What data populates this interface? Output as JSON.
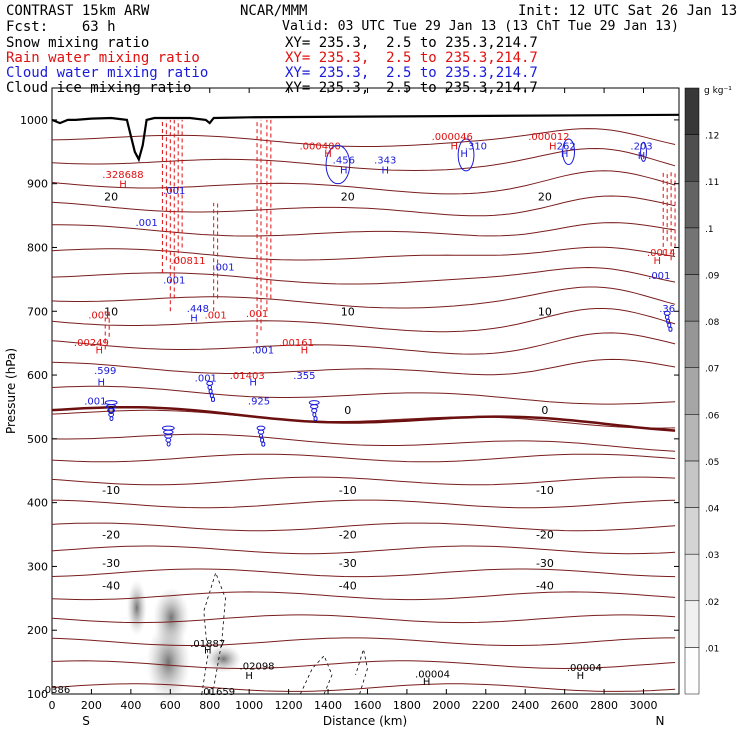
{
  "header": {
    "left_line1": "CONTRAST 15km ARW",
    "left_line2": "Fcst:    63 h",
    "center_line1": "NCAR/MMM",
    "init": "Init: 12 UTC Sat 26 Jan 13",
    "valid": "Valid: 03 UTC Tue 29 Jan 13 (13 ChT Tue 29 Jan 13)"
  },
  "fields": [
    {
      "name": "Snow mixing ratio",
      "xy": "XY= 235.3,  2.5 to 235.3,214.7",
      "color": "#000000"
    },
    {
      "name": "Rain water mixing ratio",
      "xy": "XY= 235.3,  2.5 to 235.3,214.7",
      "color": "#e01010"
    },
    {
      "name": "Cloud water mixing ratio",
      "xy": "XY= 235.3,  2.5 to 235.3,214.7",
      "color": "#1a1adc"
    },
    {
      "name": "Cloud ice mixing ratio",
      "xy": "XY= 235.3,  2.5 to 235.3,214.7",
      "color": "#000000"
    }
  ],
  "chart_data": {
    "type": "heatmap",
    "xlabel": "Distance (km)",
    "ylabel": "Pressure (hPa)",
    "xlim": [
      0,
      3180
    ],
    "ylim": [
      1050,
      100
    ],
    "x_ticks": [
      0,
      200,
      400,
      600,
      800,
      1000,
      1200,
      1400,
      1600,
      1800,
      2000,
      2200,
      2400,
      2600,
      2800,
      3000
    ],
    "y_ticks": [
      100,
      200,
      300,
      400,
      500,
      600,
      700,
      800,
      900,
      1000
    ],
    "x_end_labels": {
      "left": "S",
      "right": "N"
    },
    "colorbar": {
      "unit": "g kg⁻¹",
      "ticks": [
        ".01",
        ".02",
        ".03",
        ".04",
        ".05",
        ".06",
        ".07",
        ".08",
        ".09",
        ".1",
        ".11",
        ".12"
      ],
      "colors": [
        "#fdfdfd",
        "#f0f0f0",
        "#e2e2e2",
        "#d4d4d4",
        "#c6c6c6",
        "#b6b6b6",
        "#a6a6a6",
        "#969696",
        "#858585",
        "#747474",
        "#636363",
        "#4e4e4e",
        "#383838"
      ]
    },
    "temperature_contours": [
      {
        "label": "-40",
        "p": 270
      },
      {
        "label": "-30",
        "p": 305
      },
      {
        "label": "-20",
        "p": 350
      },
      {
        "label": "-10",
        "p": 420
      },
      {
        "label": "0",
        "p": 545
      },
      {
        "label": "10",
        "p": 700
      },
      {
        "label": "20",
        "p": 880
      }
    ],
    "annotations": [
      {
        "text": ".0386",
        "x": 20,
        "p": 108,
        "color": "#000000"
      },
      {
        "text": ".01659",
        "x": 840,
        "p": 105,
        "color": "#000000"
      },
      {
        "text": "H",
        "x": 790,
        "p": 170,
        "color": "#000000"
      },
      {
        "text": ".01887",
        "x": 790,
        "p": 180,
        "color": "#000000"
      },
      {
        "text": "H",
        "x": 1000,
        "p": 130,
        "color": "#000000"
      },
      {
        "text": ".02098",
        "x": 1040,
        "p": 145,
        "color": "#000000"
      },
      {
        "text": "H",
        "x": 1900,
        "p": 120,
        "color": "#000000"
      },
      {
        "text": ".00004",
        "x": 1930,
        "p": 132,
        "color": "#000000"
      },
      {
        "text": "H",
        "x": 2680,
        "p": 130,
        "color": "#000000"
      },
      {
        "text": ".00004",
        "x": 2700,
        "p": 142,
        "color": "#000000"
      },
      {
        "text": ".001",
        "x": 220,
        "p": 560,
        "color": "#1a1adc"
      },
      {
        "text": "H",
        "x": 250,
        "p": 590,
        "color": "#1a1adc"
      },
      {
        "text": ".599",
        "x": 270,
        "p": 608,
        "color": "#1a1adc"
      },
      {
        "text": "H",
        "x": 240,
        "p": 640,
        "color": "#e01010"
      },
      {
        "text": ".00249",
        "x": 200,
        "p": 652,
        "color": "#e01010"
      },
      {
        "text": ".001",
        "x": 240,
        "p": 695,
        "color": "#e01010"
      },
      {
        "text": ".001",
        "x": 780,
        "p": 596,
        "color": "#1a1adc"
      },
      {
        "text": "H",
        "x": 720,
        "p": 690,
        "color": "#1a1adc"
      },
      {
        "text": ".448",
        "x": 740,
        "p": 705,
        "color": "#1a1adc"
      },
      {
        "text": ".001",
        "x": 830,
        "p": 695,
        "color": "#e01010"
      },
      {
        "text": ".001",
        "x": 620,
        "p": 750,
        "color": "#1a1adc"
      },
      {
        "text": ".001",
        "x": 870,
        "p": 770,
        "color": "#1a1adc"
      },
      {
        "text": ".00811",
        "x": 690,
        "p": 780,
        "color": "#e01010"
      },
      {
        "text": ".925",
        "x": 1050,
        "p": 560,
        "color": "#1a1adc"
      },
      {
        "text": "H",
        "x": 1020,
        "p": 590,
        "color": "#1a1adc"
      },
      {
        "text": ".01403",
        "x": 990,
        "p": 600,
        "color": "#e01010"
      },
      {
        "text": ".001",
        "x": 1070,
        "p": 640,
        "color": "#1a1adc"
      },
      {
        "text": ".001",
        "x": 1040,
        "p": 697,
        "color": "#e01010"
      },
      {
        "text": ".355",
        "x": 1280,
        "p": 600,
        "color": "#1a1adc"
      },
      {
        "text": "H",
        "x": 1280,
        "p": 640,
        "color": "#e01010"
      },
      {
        "text": ".00161",
        "x": 1240,
        "p": 652,
        "color": "#e01010"
      },
      {
        "text": ".001",
        "x": 480,
        "p": 840,
        "color": "#1a1adc"
      },
      {
        "text": ".001",
        "x": 620,
        "p": 890,
        "color": "#1a1adc"
      },
      {
        "text": "H",
        "x": 360,
        "p": 900,
        "color": "#e01010"
      },
      {
        "text": ".328688",
        "x": 360,
        "p": 915,
        "color": "#e01010"
      },
      {
        "text": "H",
        "x": 1480,
        "p": 922,
        "color": "#1a1adc"
      },
      {
        "text": ".456",
        "x": 1480,
        "p": 938,
        "color": "#1a1adc"
      },
      {
        "text": "H",
        "x": 1400,
        "p": 948,
        "color": "#e01010"
      },
      {
        "text": ".000400",
        "x": 1360,
        "p": 960,
        "color": "#e01010"
      },
      {
        "text": "H",
        "x": 1690,
        "p": 922,
        "color": "#1a1adc"
      },
      {
        "text": ".343",
        "x": 1690,
        "p": 938,
        "color": "#1a1adc"
      },
      {
        "text": "H",
        "x": 2090,
        "p": 948,
        "color": "#1a1adc"
      },
      {
        "text": ".310",
        "x": 2150,
        "p": 960,
        "color": "#1a1adc"
      },
      {
        "text": "H",
        "x": 2040,
        "p": 960,
        "color": "#e01010"
      },
      {
        "text": ".000046",
        "x": 2030,
        "p": 975,
        "color": "#e01010"
      },
      {
        "text": "H",
        "x": 2600,
        "p": 948,
        "color": "#1a1adc"
      },
      {
        "text": ".262",
        "x": 2600,
        "p": 960,
        "color": "#1a1adc"
      },
      {
        "text": "H",
        "x": 2540,
        "p": 960,
        "color": "#e01010"
      },
      {
        "text": ".000012",
        "x": 2520,
        "p": 975,
        "color": "#e01010"
      },
      {
        "text": "H",
        "x": 2990,
        "p": 945,
        "color": "#1a1adc"
      },
      {
        "text": ".203",
        "x": 2990,
        "p": 960,
        "color": "#1a1adc"
      },
      {
        "text": ".36",
        "x": 3120,
        "p": 705,
        "color": "#1a1adc"
      },
      {
        "text": ".001",
        "x": 3080,
        "p": 757,
        "color": "#1a1adc"
      },
      {
        "text": "H",
        "x": 3070,
        "p": 780,
        "color": "#e01010"
      },
      {
        "text": ".0014",
        "x": 3090,
        "p": 793,
        "color": "#e01010"
      }
    ]
  }
}
